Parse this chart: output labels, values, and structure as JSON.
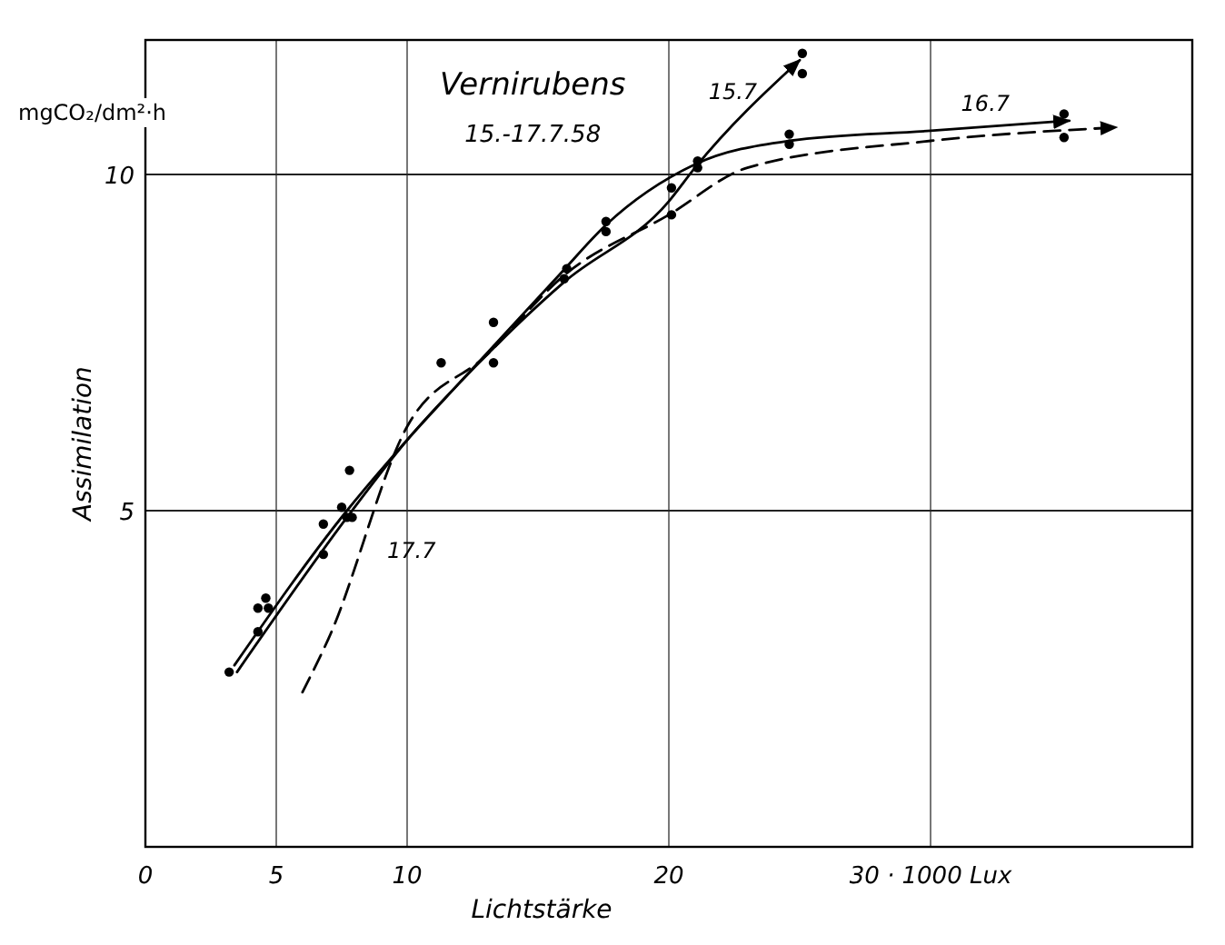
{
  "chart_data": {
    "type": "line",
    "title": "Vernirubens",
    "subtitle": "15.-17.7.58",
    "xlabel": "Lichtstärke",
    "ylabel": "Assimilation",
    "xlim": [
      0,
      40
    ],
    "ylim": [
      0,
      12
    ],
    "xticks": [
      0,
      5,
      10,
      20,
      {
        "value": 30,
        "label": "30 · 1000 Lux"
      }
    ],
    "yticks": [
      5,
      10
    ],
    "grid": true,
    "marker": "none",
    "annotations": [
      "mgCO₂/dm²·h"
    ],
    "series": [
      {
        "type": "scatter",
        "marker": "circle",
        "color": "#000000",
        "x": [
          3.2,
          4.3,
          4.3,
          4.6,
          4.7,
          6.8,
          6.8,
          7.5,
          7.8,
          7.7,
          7.9,
          11.3,
          13.3,
          13.3,
          16.1,
          16,
          17.6,
          17.6,
          20.1,
          20.1,
          21.1,
          21.1,
          24.6,
          24.6,
          25.1,
          25.1,
          35.1,
          35.1
        ],
        "values": [
          2.6,
          3.2,
          3.55,
          3.7,
          3.55,
          4.35,
          4.8,
          5.05,
          5.6,
          4.9,
          4.9,
          7.2,
          7.8,
          7.2,
          8.6,
          8.45,
          9.3,
          9.15,
          9.8,
          9.4,
          10.2,
          10.1,
          10.6,
          10.45,
          11.8,
          11.5,
          10.9,
          10.55
        ]
      },
      {
        "name": "16.7",
        "line_style": "solid",
        "color": "#000000",
        "x": [
          3.4,
          7.7,
          10,
          12,
          15.8,
          17.6,
          21,
          24.6,
          30,
          35.3
        ],
        "values": [
          2.7,
          5.0,
          6.05,
          6.9,
          8.5,
          9.25,
          10.15,
          10.5,
          10.65,
          10.8
        ]
      },
      {
        "name": "15.7",
        "line_style": "solid",
        "color": "#000000",
        "x": [
          3.5,
          7.8,
          10,
          12,
          16,
          20,
          21,
          25
        ],
        "values": [
          2.6,
          4.95,
          6.05,
          6.9,
          8.4,
          9.6,
          10.1,
          11.7
        ]
      },
      {
        "name": "17.7",
        "line_style": "dashed",
        "color": "#000000",
        "x": [
          6,
          7,
          10,
          13,
          16,
          20,
          23,
          30,
          37.1
        ],
        "values": [
          2.3,
          3.1,
          6.25,
          7.3,
          8.5,
          9.4,
          10.1,
          10.5,
          10.7
        ]
      }
    ]
  }
}
